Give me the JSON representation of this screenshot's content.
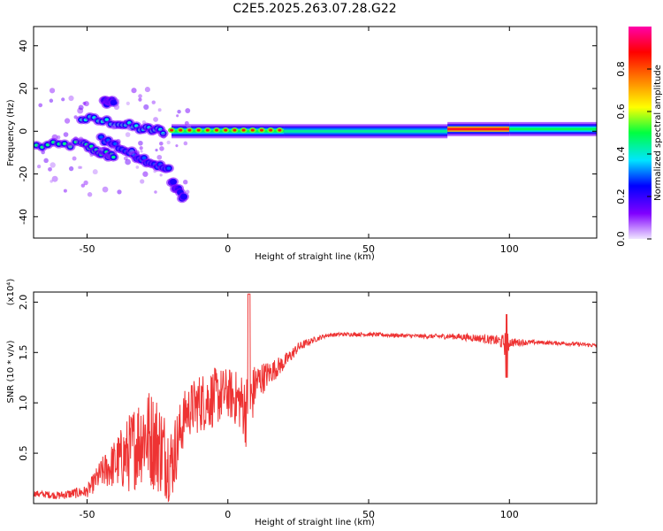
{
  "chart_data": [
    {
      "type": "heatmap",
      "title": "C2E5.2025.263.07.28.G22",
      "xlabel": "Height of straight line (km)",
      "ylabel": "Frequency (Hz)",
      "xlim": [
        -69,
        131
      ],
      "ylim": [
        -50,
        49
      ],
      "xticks": [
        -50,
        0,
        50,
        100
      ],
      "yticks": [
        -40,
        -20,
        0,
        20,
        40
      ],
      "colorbar": {
        "label": "Normalized spectral amplitude",
        "range": [
          0,
          1
        ],
        "ticks": [
          "0.0",
          "0.2",
          "0.4",
          "0.6",
          "0.8"
        ],
        "tick_values": [
          0.0,
          0.2,
          0.4,
          0.6,
          0.8
        ],
        "colors": [
          "#f0e6ff",
          "#8000ff",
          "#0000ff",
          "#00e5ff",
          "#00ff40",
          "#ffff00",
          "#ff8000",
          "#ff0000",
          "#ff00aa"
        ]
      },
      "main_band": {
        "description": "dominant frequency track",
        "segments": [
          {
            "x": [
              -20,
              20
            ],
            "y": 0,
            "amplitude": 0.5
          },
          {
            "x": [
              20,
              78
            ],
            "y": 0,
            "amplitude": 0.45
          },
          {
            "x": [
              78,
              100
            ],
            "y": 1,
            "amplitude": 0.9
          },
          {
            "x": [
              100,
              131
            ],
            "y": 1,
            "amplitude": 0.5
          }
        ]
      },
      "branches": [
        {
          "x": [
            -68,
            -52,
            -45,
            -40
          ],
          "y": [
            -7,
            -6,
            -10,
            -12
          ],
          "amplitude": 0.35
        },
        {
          "x": [
            -52,
            -40,
            -30,
            -22
          ],
          "y": [
            6,
            4,
            1,
            0
          ],
          "amplitude": 0.3
        },
        {
          "x": [
            -45,
            -35,
            -28,
            -20
          ],
          "y": [
            -3,
            -10,
            -14,
            -19
          ],
          "amplitude": 0.2
        },
        {
          "x": [
            -44,
            -40
          ],
          "y": [
            14,
            14
          ],
          "amplitude": 0.1
        },
        {
          "x": [
            -20,
            -15
          ],
          "y": [
            -24,
            -32
          ],
          "amplitude": 0.05
        }
      ]
    },
    {
      "type": "line",
      "title": "",
      "xlabel": "Height of straight line (km)",
      "ylabel": "SNR (10 * v/v)",
      "y_multiplier": "(x10⁴)",
      "xlim": [
        -69,
        131
      ],
      "ylim": [
        0,
        2.1
      ],
      "xticks": [
        -50,
        0,
        50,
        100
      ],
      "yticks": [
        0.5,
        1.0,
        1.5,
        2.0
      ],
      "ytick_labels": [
        "0.5",
        "1.0",
        "1.5",
        "2.0"
      ],
      "color": "#ee3333",
      "series": [
        {
          "name": "SNR",
          "envelope": {
            "x": [
              -69,
              -60,
              -50,
              -45,
              -40,
              -35,
              -30,
              -25,
              -20,
              -15,
              -10,
              -5,
              0,
              5,
              7,
              10,
              15,
              20,
              25,
              30,
              35,
              40,
              50,
              60,
              70,
              80,
              90,
              95,
              98,
              99,
              100,
              105,
              110,
              120,
              131
            ],
            "y": [
              0.1,
              0.08,
              0.12,
              0.3,
              0.4,
              0.5,
              0.7,
              0.6,
              0.4,
              0.9,
              1.0,
              1.05,
              1.1,
              1.0,
              0.9,
              1.2,
              1.3,
              1.4,
              1.55,
              1.62,
              1.67,
              1.68,
              1.68,
              1.67,
              1.66,
              1.66,
              1.64,
              1.62,
              1.6,
              1.55,
              1.6,
              1.6,
              1.6,
              1.59,
              1.57
            ],
            "noise": [
              0.03,
              0.04,
              0.06,
              0.15,
              0.25,
              0.4,
              0.5,
              0.5,
              0.4,
              0.25,
              0.3,
              0.3,
              0.25,
              0.3,
              0.4,
              0.2,
              0.12,
              0.08,
              0.05,
              0.03,
              0.02,
              0.02,
              0.02,
              0.02,
              0.02,
              0.03,
              0.04,
              0.05,
              0.08,
              0.2,
              0.05,
              0.03,
              0.02,
              0.02,
              0.02
            ]
          }
        }
      ]
    }
  ]
}
